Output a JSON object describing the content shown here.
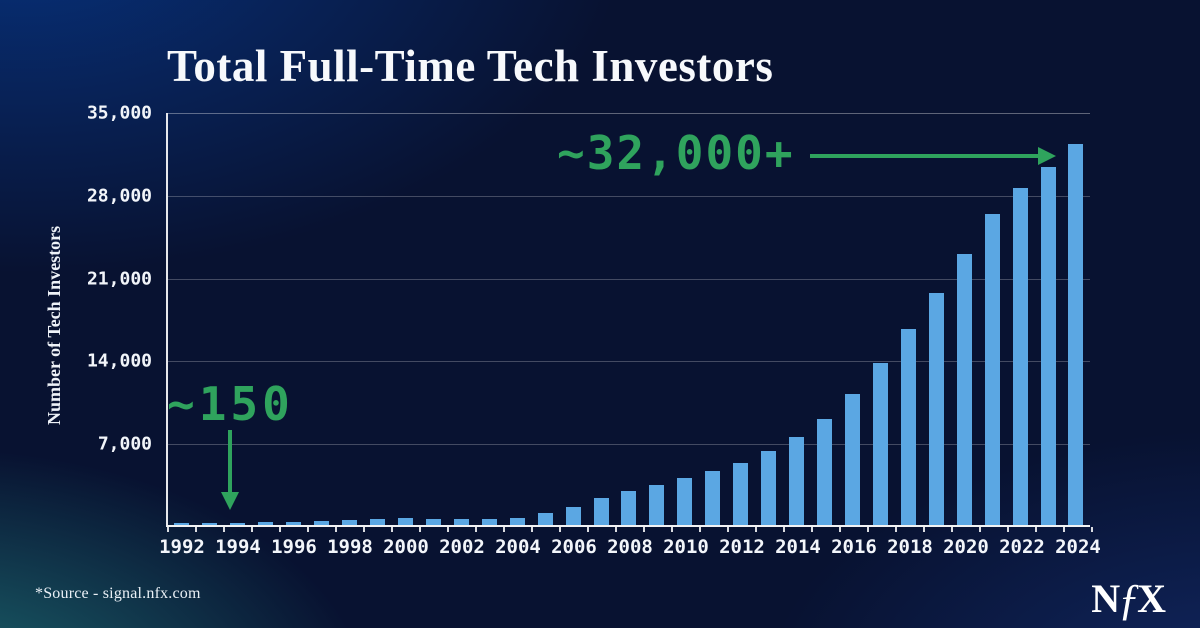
{
  "page": {
    "source_note": "*Source - signal.nfx.com",
    "logo": {
      "part_n": "N",
      "part_f": "ƒ",
      "part_x": "X"
    }
  },
  "colors": {
    "bar_blue": "#5ba7e3",
    "accent_green": "#2fa35d",
    "axis_white": "#ffffff",
    "gridline": "rgba(255,255,255,0.24)",
    "background_navy": "#081231",
    "background_teal": "#1e7074",
    "background_blue": "#073482"
  },
  "chart_data": {
    "type": "bar",
    "title": "Total Full-Time Tech Investors",
    "xlabel": "",
    "ylabel": "Number of Tech Investors",
    "ylim": [
      0,
      35000
    ],
    "grid": "horizontal",
    "legend": "none",
    "y_ticks": [
      {
        "label": "35,000",
        "value": 35000
      },
      {
        "label": "28,000",
        "value": 28000
      },
      {
        "label": "21,000",
        "value": 21000
      },
      {
        "label": "14,000",
        "value": 14000
      },
      {
        "label": "7,000",
        "value": 7000
      }
    ],
    "x_tick_labels": [
      "1992",
      "1994",
      "1996",
      "1998",
      "2000",
      "2002",
      "2004",
      "2006",
      "2008",
      "2010",
      "2012",
      "2014",
      "2016",
      "2018",
      "2020",
      "2022",
      "2024"
    ],
    "categories": [
      1992,
      1993,
      1994,
      1995,
      1996,
      1997,
      1998,
      1999,
      2000,
      2001,
      2002,
      2003,
      2004,
      2005,
      2006,
      2007,
      2008,
      2009,
      2010,
      2011,
      2012,
      2013,
      2014,
      2015,
      2016,
      2017,
      2018,
      2019,
      2020,
      2021,
      2022,
      2023,
      2024
    ],
    "values": [
      150,
      180,
      200,
      250,
      290,
      330,
      400,
      510,
      600,
      540,
      480,
      510,
      570,
      1050,
      1550,
      2270,
      2850,
      3400,
      3960,
      4530,
      5240,
      6290,
      7400,
      9000,
      11100,
      13700,
      16550,
      19600,
      22950,
      26300,
      28500,
      30300,
      32200
    ],
    "annotations": [
      {
        "text": "~150",
        "points_to": "1994",
        "arrow": "down"
      },
      {
        "text": "~32,000+",
        "points_to": "2024",
        "arrow": "right"
      }
    ]
  }
}
